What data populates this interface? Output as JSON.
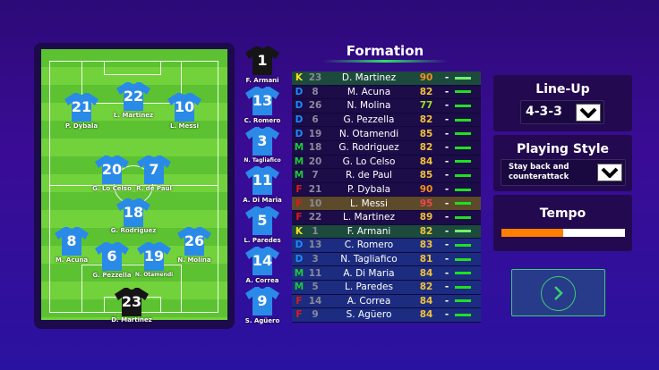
{
  "title": "Formation",
  "lineup": {
    "label": "Line-Up",
    "value": "4-3-3"
  },
  "style": {
    "label": "Playing Style",
    "value_line1": "Stay back and",
    "value_line2": "counterattack"
  },
  "tempo": {
    "label": "Tempo",
    "value": 0.5
  },
  "colors": {
    "K": "#f5e020",
    "D": "#1a8cff",
    "M": "#1ec83a",
    "F": "#e01a1a",
    "shirt": "#2a8ae8",
    "keeper_shirt": "#151515"
  },
  "next_button": {
    "icon": "chevron-right-icon"
  },
  "pitch": [
    {
      "num": "21",
      "name": "P. Dybala"
    },
    {
      "num": "22",
      "name": "L. Martinez"
    },
    {
      "num": "10",
      "name": "L. Messi"
    },
    {
      "num": "20",
      "name": "G. Lo Celso"
    },
    {
      "num": "7",
      "name": "R. de Paul"
    },
    {
      "num": "18",
      "name": "G. Rodriguez"
    },
    {
      "num": "8",
      "name": "M. Acuna"
    },
    {
      "num": "6",
      "name": "G. Pezzella"
    },
    {
      "num": "19",
      "name": "N. Otamendi"
    },
    {
      "num": "26",
      "name": "N. Molina"
    },
    {
      "num": "23",
      "name": "D. Martinez",
      "keeper": true
    }
  ],
  "bench": [
    {
      "num": "1",
      "name": "F. Armani",
      "keeper": true
    },
    {
      "num": "13",
      "name": "C. Romero"
    },
    {
      "num": "3",
      "name": "N. Tagliafico"
    },
    {
      "num": "11",
      "name": "A. Di Maria"
    },
    {
      "num": "5",
      "name": "L. Paredes"
    },
    {
      "num": "14",
      "name": "A. Correa"
    },
    {
      "num": "9",
      "name": "S. Agüero"
    }
  ],
  "players": [
    {
      "pos": "K",
      "num": "23",
      "name": "D. Martinez",
      "rating": "90",
      "status": "-"
    },
    {
      "pos": "D",
      "num": "8",
      "name": "M. Acuna",
      "rating": "82",
      "status": "-"
    },
    {
      "pos": "D",
      "num": "26",
      "name": "N. Molina",
      "rating": "77",
      "status": "-"
    },
    {
      "pos": "D",
      "num": "6",
      "name": "G. Pezzella",
      "rating": "82",
      "status": "-"
    },
    {
      "pos": "D",
      "num": "19",
      "name": "N. Otamendi",
      "rating": "85",
      "status": "-"
    },
    {
      "pos": "M",
      "num": "18",
      "name": "G. Rodriguez",
      "rating": "82",
      "status": "-"
    },
    {
      "pos": "M",
      "num": "20",
      "name": "G. Lo Celso",
      "rating": "84",
      "status": "-"
    },
    {
      "pos": "M",
      "num": "7",
      "name": "R. de Paul",
      "rating": "85",
      "status": "-"
    },
    {
      "pos": "F",
      "num": "21",
      "name": "P. Dybala",
      "rating": "90",
      "status": "-"
    },
    {
      "pos": "F",
      "num": "10",
      "name": "L. Messi",
      "rating": "95",
      "status": "-",
      "selected": true
    },
    {
      "pos": "F",
      "num": "22",
      "name": "L. Martinez",
      "rating": "89",
      "status": "-"
    },
    {
      "pos": "K",
      "num": "1",
      "name": "F. Armani",
      "rating": "82",
      "status": "-"
    },
    {
      "pos": "D",
      "num": "13",
      "name": "C. Romero",
      "rating": "83",
      "status": "-"
    },
    {
      "pos": "D",
      "num": "3",
      "name": "N. Tagliafico",
      "rating": "81",
      "status": "-"
    },
    {
      "pos": "M",
      "num": "11",
      "name": "A. Di Maria",
      "rating": "84",
      "status": "-"
    },
    {
      "pos": "M",
      "num": "5",
      "name": "L. Paredes",
      "rating": "82",
      "status": "-"
    },
    {
      "pos": "F",
      "num": "14",
      "name": "A. Correa",
      "rating": "84",
      "status": "-"
    },
    {
      "pos": "F",
      "num": "9",
      "name": "S. Agüero",
      "rating": "84",
      "status": "-"
    }
  ]
}
